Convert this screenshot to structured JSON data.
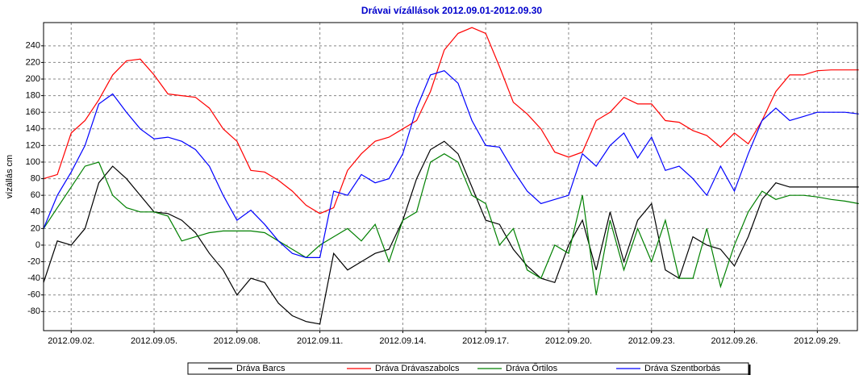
{
  "chart_data": {
    "type": "line",
    "title": "Drávai vízállások 2012.09.01-2012.09.30",
    "y_label": "vízállás cm",
    "x": [
      1,
      1.5,
      2,
      2.5,
      3,
      3.5,
      4,
      4.5,
      5,
      5.5,
      6,
      6.5,
      7,
      7.5,
      8,
      8.5,
      9,
      9.5,
      10,
      10.5,
      11,
      11.5,
      12,
      12.5,
      13,
      13.5,
      14,
      14.5,
      15,
      15.5,
      16,
      16.5,
      17,
      17.5,
      18,
      18.5,
      19,
      19.5,
      20,
      20.5,
      21,
      21.5,
      22,
      22.5,
      23,
      23.5,
      24,
      24.5,
      25,
      25.5,
      26,
      26.5,
      27,
      27.5,
      28,
      28.5,
      29,
      29.5,
      30,
      30.5
    ],
    "xlim": [
      1,
      30.45
    ],
    "xticks": [
      {
        "value": 2,
        "label": "2012.09.02."
      },
      {
        "value": 5,
        "label": "2012.09.05."
      },
      {
        "value": 8,
        "label": "2012.09.08."
      },
      {
        "value": 11,
        "label": "2012.09.11."
      },
      {
        "value": 14,
        "label": "2012.09.14."
      },
      {
        "value": 17,
        "label": "2012.09.17."
      },
      {
        "value": 20,
        "label": "2012.09.20."
      },
      {
        "value": 23,
        "label": "2012.09.23."
      },
      {
        "value": 26,
        "label": "2012.09.26."
      },
      {
        "value": 29,
        "label": "2012.09.29."
      }
    ],
    "ylim": [
      -103,
      268
    ],
    "yticks": [
      -80,
      -60,
      -40,
      -20,
      0,
      20,
      40,
      60,
      80,
      100,
      120,
      140,
      160,
      180,
      200,
      220,
      240
    ],
    "grid": true,
    "legend": "bottom",
    "series": [
      {
        "name": "Dráva Barcs",
        "color": "#000000",
        "values": [
          -45,
          5,
          0,
          20,
          75,
          95,
          80,
          60,
          40,
          38,
          30,
          15,
          -10,
          -30,
          -60,
          -40,
          -45,
          -70,
          -85,
          -92,
          -95,
          -10,
          -30,
          -20,
          -10,
          -5,
          30,
          80,
          115,
          125,
          110,
          70,
          30,
          25,
          -5,
          -25,
          -40,
          -45,
          0,
          30,
          -30,
          40,
          -20,
          30,
          50,
          -30,
          -40,
          10,
          0,
          -5,
          -25,
          10,
          55,
          75,
          70,
          70,
          70,
          70,
          70,
          70
        ]
      },
      {
        "name": "Dráva Drávaszabolcs",
        "color": "#ff0000",
        "values": [
          80,
          85,
          135,
          150,
          175,
          205,
          222,
          224,
          205,
          182,
          180,
          178,
          165,
          140,
          125,
          90,
          88,
          78,
          65,
          48,
          38,
          45,
          90,
          110,
          125,
          130,
          140,
          150,
          185,
          235,
          255,
          262,
          255,
          215,
          172,
          158,
          140,
          112,
          106,
          112,
          150,
          160,
          178,
          170,
          170,
          150,
          148,
          138,
          132,
          118,
          135,
          122,
          150,
          185,
          205,
          205,
          210,
          211,
          211,
          211
        ]
      },
      {
        "name": "Dráva Őrtilos",
        "color": "#008000",
        "values": [
          20,
          45,
          70,
          95,
          100,
          60,
          45,
          40,
          40,
          35,
          5,
          10,
          15,
          17,
          17,
          17,
          15,
          5,
          -5,
          -15,
          0,
          10,
          20,
          5,
          25,
          -20,
          30,
          40,
          100,
          110,
          100,
          60,
          50,
          0,
          20,
          -30,
          -40,
          0,
          -10,
          60,
          -60,
          30,
          -30,
          20,
          -20,
          30,
          -40,
          -40,
          20,
          -50,
          0,
          40,
          65,
          55,
          60,
          60,
          58,
          55,
          53,
          50
        ]
      },
      {
        "name": "Dráva Szentborbás",
        "color": "#0000ff",
        "values": [
          20,
          60,
          88,
          120,
          170,
          182,
          160,
          140,
          128,
          130,
          125,
          115,
          95,
          60,
          30,
          42,
          25,
          5,
          -10,
          -15,
          -15,
          65,
          60,
          85,
          75,
          80,
          110,
          165,
          205,
          210,
          195,
          150,
          120,
          118,
          90,
          65,
          50,
          55,
          60,
          110,
          95,
          120,
          135,
          105,
          130,
          90,
          95,
          80,
          60,
          95,
          65,
          110,
          150,
          165,
          150,
          155,
          160,
          160,
          160,
          158
        ]
      }
    ]
  }
}
